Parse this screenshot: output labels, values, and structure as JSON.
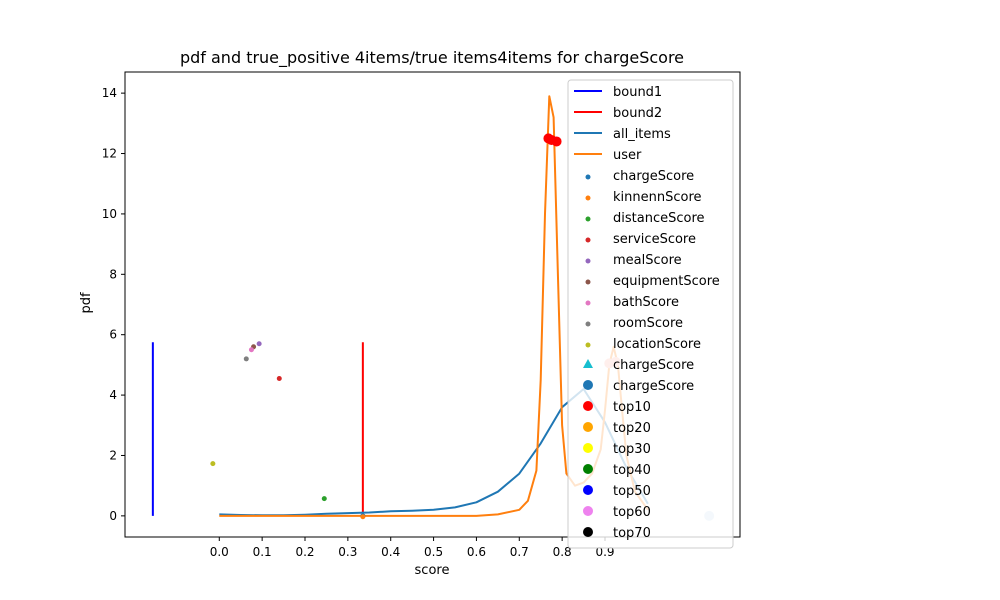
{
  "chart_data": {
    "type": "line",
    "title": "pdf and true_positive 4items/true items4items for chargeScore",
    "xlabel": "score",
    "ylabel": "pdf",
    "xlim": [
      -0.22,
      1.215
    ],
    "ylim": [
      -0.7,
      14.7
    ],
    "xticks": [
      0.0,
      0.1,
      0.2,
      0.3,
      0.4,
      0.5,
      0.6,
      0.7,
      0.8,
      0.9
    ],
    "xtick_labels": [
      "0.0",
      "0.1",
      "0.2",
      "0.3",
      "0.4",
      "0.5",
      "0.6",
      "0.7",
      "0.8",
      "0.9"
    ],
    "yticks": [
      0,
      2,
      4,
      6,
      8,
      10,
      12,
      14
    ],
    "ytick_labels": [
      "0",
      "2",
      "4",
      "6",
      "8",
      "10",
      "12",
      "14"
    ],
    "bounds": [
      {
        "name": "bound1",
        "x": -0.155,
        "y0": 0,
        "y1": 5.75,
        "color": "#0000ff"
      },
      {
        "name": "bound2",
        "x": 0.335,
        "y0": 0,
        "y1": 5.75,
        "color": "#ff0000"
      }
    ],
    "lines": [
      {
        "name": "all_items",
        "color": "#1f77b4",
        "x": [
          0.0,
          0.05,
          0.1,
          0.15,
          0.2,
          0.25,
          0.3,
          0.35,
          0.4,
          0.45,
          0.5,
          0.55,
          0.6,
          0.65,
          0.7,
          0.75,
          0.8,
          0.85,
          0.9,
          0.95,
          1.0
        ],
        "y": [
          0.05,
          0.03,
          0.02,
          0.02,
          0.04,
          0.07,
          0.09,
          0.11,
          0.15,
          0.17,
          0.2,
          0.28,
          0.45,
          0.8,
          1.4,
          2.4,
          3.6,
          4.2,
          3.1,
          1.6,
          0.4
        ]
      },
      {
        "name": "user",
        "color": "#ff7f0e",
        "x": [
          0.0,
          0.1,
          0.2,
          0.3,
          0.4,
          0.5,
          0.6,
          0.65,
          0.7,
          0.72,
          0.74,
          0.75,
          0.76,
          0.77,
          0.78,
          0.79,
          0.8,
          0.81,
          0.83,
          0.85,
          0.87,
          0.89,
          0.9,
          0.91,
          0.92,
          0.93,
          0.94,
          0.95,
          0.97,
          1.0
        ],
        "y": [
          0.0,
          0.0,
          0.0,
          0.0,
          0.0,
          0.0,
          0.0,
          0.05,
          0.2,
          0.5,
          1.5,
          4.5,
          10.0,
          13.9,
          13.2,
          8.0,
          3.0,
          1.4,
          1.0,
          1.1,
          1.4,
          2.2,
          3.5,
          5.0,
          5.6,
          5.0,
          3.5,
          2.0,
          0.8,
          0.2
        ]
      }
    ],
    "scatter": [
      {
        "name": "chargeScore",
        "x": 0.335,
        "y": 0.0,
        "color": "#1f77b4",
        "marker": "dot"
      },
      {
        "name": "kinnennScore",
        "x": 0.335,
        "y": -0.03,
        "color": "#ff7f0e",
        "marker": "dot"
      },
      {
        "name": "distanceScore",
        "x": 0.245,
        "y": 0.57,
        "color": "#2ca02c",
        "marker": "dot"
      },
      {
        "name": "serviceScore",
        "x": 0.14,
        "y": 4.55,
        "color": "#d62728",
        "marker": "dot"
      },
      {
        "name": "mealScore",
        "x": 0.093,
        "y": 5.7,
        "color": "#9467bd",
        "marker": "dot"
      },
      {
        "name": "equipmentScore",
        "x": 0.08,
        "y": 5.6,
        "color": "#8c564b",
        "marker": "dot"
      },
      {
        "name": "bathScore",
        "x": 0.075,
        "y": 5.5,
        "color": "#e377c2",
        "marker": "dot"
      },
      {
        "name": "roomScore",
        "x": 0.063,
        "y": 5.2,
        "color": "#7f7f7f",
        "marker": "dot"
      },
      {
        "name": "locationScore",
        "x": -0.015,
        "y": 1.73,
        "color": "#bcbd22",
        "marker": "dot"
      }
    ],
    "highlight_points": [
      {
        "name": "top10",
        "x": 0.768,
        "y": 12.5,
        "color": "#ff0000"
      },
      {
        "name": "top10",
        "x": 0.775,
        "y": 12.45,
        "color": "#ff0000"
      },
      {
        "name": "top10",
        "x": 0.787,
        "y": 12.4,
        "color": "#ff0000"
      },
      {
        "name": "top20",
        "x": 0.91,
        "y": 5.05,
        "color": "#ffb0a0"
      },
      {
        "name": "top20",
        "x": 0.925,
        "y": 5.1,
        "color": "#ffb0a0"
      },
      {
        "name": "chargeScore",
        "x": 1.143,
        "y": 0.0,
        "color": "#c6dbef"
      }
    ],
    "legend": {
      "placement": "top-right",
      "entries": [
        {
          "label": "bound1",
          "kind": "line",
          "color": "#0000ff"
        },
        {
          "label": "bound2",
          "kind": "line",
          "color": "#ff0000"
        },
        {
          "label": "all_items",
          "kind": "line",
          "color": "#1f77b4"
        },
        {
          "label": "user",
          "kind": "line",
          "color": "#ff7f0e"
        },
        {
          "label": "chargeScore",
          "kind": "dot",
          "color": "#1f77b4"
        },
        {
          "label": "kinnennScore",
          "kind": "dot",
          "color": "#ff7f0e"
        },
        {
          "label": "distanceScore",
          "kind": "dot",
          "color": "#2ca02c"
        },
        {
          "label": "serviceScore",
          "kind": "dot",
          "color": "#d62728"
        },
        {
          "label": "mealScore",
          "kind": "dot",
          "color": "#9467bd"
        },
        {
          "label": "equipmentScore",
          "kind": "dot",
          "color": "#8c564b"
        },
        {
          "label": "bathScore",
          "kind": "dot",
          "color": "#e377c2"
        },
        {
          "label": "roomScore",
          "kind": "dot",
          "color": "#7f7f7f"
        },
        {
          "label": "locationScore",
          "kind": "dot",
          "color": "#bcbd22"
        },
        {
          "label": "chargeScore",
          "kind": "triangle",
          "color": "#17becf"
        },
        {
          "label": "chargeScore",
          "kind": "circle",
          "color": "#1f77b4"
        },
        {
          "label": "top10",
          "kind": "circle",
          "color": "#ff0000"
        },
        {
          "label": "top20",
          "kind": "circle",
          "color": "#ffa500"
        },
        {
          "label": "top30",
          "kind": "circle",
          "color": "#ffff00"
        },
        {
          "label": "top40",
          "kind": "circle",
          "color": "#008000"
        },
        {
          "label": "top50",
          "kind": "circle",
          "color": "#0000ff"
        },
        {
          "label": "top60",
          "kind": "circle",
          "color": "#ee82ee"
        },
        {
          "label": "top70",
          "kind": "circle",
          "color": "#000000"
        }
      ]
    }
  }
}
